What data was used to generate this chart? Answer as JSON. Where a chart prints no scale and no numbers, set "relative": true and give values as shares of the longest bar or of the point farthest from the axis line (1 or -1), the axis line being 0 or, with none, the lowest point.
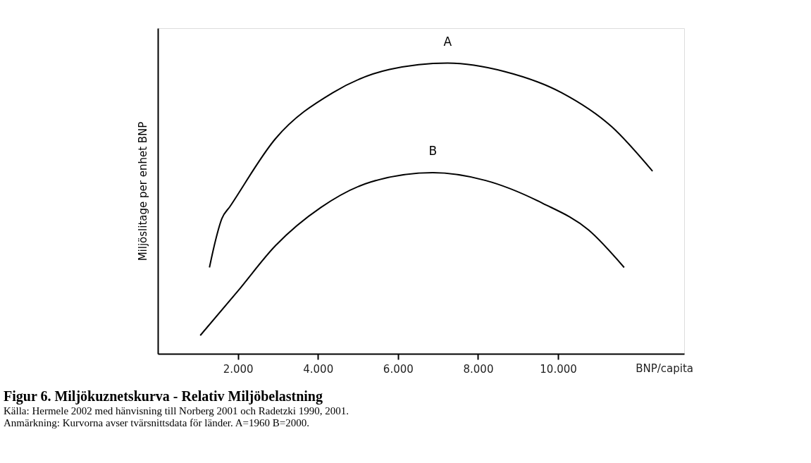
{
  "chart_data": {
    "type": "line",
    "title": "Figur 6. Miljökuznetskurva - Relativ Miljöbelastning",
    "annotations": [
      "Källa: Hermele 2002 med hänvisning till Norberg 2001 och Radetzki 1990, 2001.",
      "Anmärkning: Kurvorna avser tvärsnittsdata för länder. A=1960 B=2000."
    ],
    "xlabel": "BNP/capita",
    "ylabel": "Miljöslitage per enhet BNP",
    "relative": true,
    "xlim": [
      0,
      13150
    ],
    "xticks": [
      {
        "value": 2000,
        "label": "2.000"
      },
      {
        "value": 4000,
        "label": "4.000"
      },
      {
        "value": 6000,
        "label": "6.000"
      },
      {
        "value": 8000,
        "label": "8.000"
      },
      {
        "value": 10000,
        "label": "10.000"
      }
    ],
    "grid": false,
    "legend": false,
    "marker": "none",
    "line_style": "solid",
    "series": [
      {
        "name": "A",
        "color": "#000000",
        "x": [
          1290,
          1410,
          1600,
          1800,
          2940,
          4370,
          5790,
          7240,
          8660,
          10090,
          11340,
          12360
        ],
        "values": [
          0.297,
          0.372,
          0.465,
          0.506,
          0.74,
          0.898,
          0.978,
          1,
          0.971,
          0.898,
          0.781,
          0.628
        ]
      },
      {
        "name": "B",
        "color": "#000000",
        "x": [
          1060,
          1990,
          2940,
          4080,
          5320,
          6870,
          8190,
          9610,
          10760,
          11650
        ],
        "values": [
          0.063,
          0.214,
          0.372,
          0.504,
          0.591,
          0.623,
          0.596,
          0.518,
          0.426,
          0.297
        ]
      }
    ]
  }
}
